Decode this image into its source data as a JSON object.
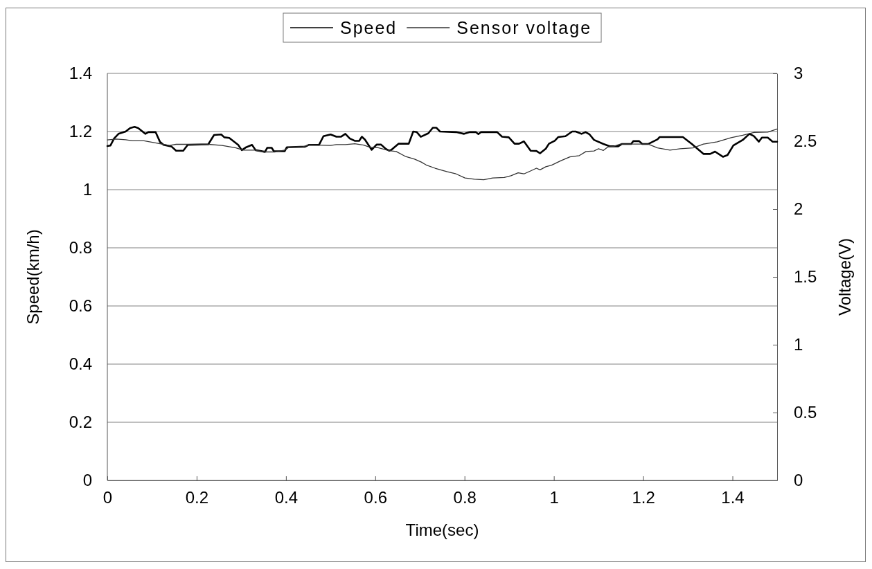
{
  "chart_data": {
    "type": "line",
    "xlabel": "Time(sec)",
    "ylabel": "Speed(km/h)",
    "y2label": "Voltage(V)",
    "xlim": [
      0,
      1.5
    ],
    "xticks": [
      0,
      0.2,
      0.4,
      0.6,
      0.8,
      1,
      1.2,
      1.4
    ],
    "ylim": [
      0,
      1.4
    ],
    "yticks": [
      0,
      0.2,
      0.4,
      0.6,
      0.8,
      1,
      1.2,
      1.4
    ],
    "y2lim": [
      0,
      3
    ],
    "y2ticks": [
      0,
      0.5,
      1,
      1.5,
      2,
      2.5,
      3
    ],
    "grid": "y",
    "legend": "top",
    "series": [
      {
        "name": "Speed",
        "color": "#000000",
        "x": [
          0,
          0.007,
          0.015,
          0.025,
          0.041,
          0.051,
          0.061,
          0.069,
          0.085,
          0.092,
          0.108,
          0.118,
          0.126,
          0.144,
          0.154,
          0.17,
          0.18,
          0.226,
          0.239,
          0.255,
          0.262,
          0.273,
          0.293,
          0.301,
          0.311,
          0.324,
          0.332,
          0.353,
          0.358,
          0.368,
          0.373,
          0.397,
          0.402,
          0.443,
          0.451,
          0.474,
          0.484,
          0.5,
          0.513,
          0.523,
          0.533,
          0.543,
          0.554,
          0.564,
          0.57,
          0.577,
          0.592,
          0.603,
          0.613,
          0.623,
          0.631,
          0.636,
          0.652,
          0.675,
          0.685,
          0.693,
          0.702,
          0.719,
          0.729,
          0.737,
          0.745,
          0.781,
          0.799,
          0.812,
          0.825,
          0.831,
          0.837,
          0.873,
          0.884,
          0.899,
          0.912,
          0.922,
          0.933,
          0.948,
          0.961,
          0.969,
          0.982,
          0.989,
          1.002,
          1.01,
          1.026,
          1.041,
          1.049,
          1.062,
          1.071,
          1.08,
          1.09,
          1.111,
          1.126,
          1.144,
          1.152,
          1.173,
          1.178,
          1.191,
          1.198,
          1.211,
          1.232,
          1.237,
          1.289,
          1.309,
          1.335,
          1.35,
          1.361,
          1.379,
          1.389,
          1.402,
          1.423,
          1.438,
          1.448,
          1.459,
          1.466,
          1.479,
          1.49,
          1.5
        ],
        "values": [
          1.15,
          1.152,
          1.176,
          1.192,
          1.2,
          1.212,
          1.216,
          1.212,
          1.192,
          1.198,
          1.198,
          1.164,
          1.154,
          1.148,
          1.134,
          1.134,
          1.154,
          1.156,
          1.188,
          1.19,
          1.18,
          1.178,
          1.154,
          1.136,
          1.146,
          1.154,
          1.136,
          1.13,
          1.144,
          1.144,
          1.132,
          1.132,
          1.146,
          1.148,
          1.154,
          1.154,
          1.184,
          1.19,
          1.182,
          1.182,
          1.192,
          1.176,
          1.168,
          1.168,
          1.182,
          1.172,
          1.137,
          1.155,
          1.155,
          1.141,
          1.134,
          1.137,
          1.158,
          1.158,
          1.2,
          1.198,
          1.182,
          1.194,
          1.213,
          1.213,
          1.2,
          1.198,
          1.192,
          1.198,
          1.198,
          1.191,
          1.198,
          1.198,
          1.182,
          1.18,
          1.158,
          1.158,
          1.166,
          1.134,
          1.133,
          1.125,
          1.141,
          1.158,
          1.168,
          1.181,
          1.184,
          1.2,
          1.2,
          1.192,
          1.198,
          1.19,
          1.171,
          1.157,
          1.149,
          1.149,
          1.157,
          1.157,
          1.167,
          1.167,
          1.157,
          1.157,
          1.173,
          1.181,
          1.181,
          1.157,
          1.123,
          1.123,
          1.131,
          1.113,
          1.119,
          1.152,
          1.171,
          1.192,
          1.184,
          1.165,
          1.179,
          1.179,
          1.165,
          1.165
        ]
      },
      {
        "name": "Sensor voltage",
        "color": "#333333",
        "axis": "y2",
        "x": [
          0,
          0.02,
          0.041,
          0.056,
          0.082,
          0.118,
          0.139,
          0.154,
          0.226,
          0.257,
          0.288,
          0.304,
          0.33,
          0.35,
          0.376,
          0.397,
          0.407,
          0.438,
          0.453,
          0.5,
          0.513,
          0.533,
          0.554,
          0.574,
          0.59,
          0.605,
          0.631,
          0.647,
          0.667,
          0.688,
          0.703,
          0.714,
          0.734,
          0.76,
          0.781,
          0.801,
          0.822,
          0.843,
          0.863,
          0.889,
          0.904,
          0.92,
          0.933,
          0.946,
          0.961,
          0.969,
          0.982,
          0.995,
          1.015,
          1.036,
          1.057,
          1.072,
          1.09,
          1.1,
          1.111,
          1.121,
          1.134,
          1.149,
          1.211,
          1.232,
          1.26,
          1.283,
          1.312,
          1.335,
          1.366,
          1.397,
          1.423,
          1.448,
          1.479,
          1.5
        ],
        "values": [
          2.51,
          2.516,
          2.511,
          2.503,
          2.503,
          2.481,
          2.469,
          2.477,
          2.477,
          2.469,
          2.451,
          2.434,
          2.434,
          2.421,
          2.421,
          2.434,
          2.456,
          2.46,
          2.473,
          2.469,
          2.475,
          2.475,
          2.481,
          2.471,
          2.454,
          2.454,
          2.43,
          2.424,
          2.389,
          2.368,
          2.346,
          2.325,
          2.301,
          2.276,
          2.259,
          2.229,
          2.22,
          2.216,
          2.229,
          2.233,
          2.246,
          2.267,
          2.259,
          2.278,
          2.301,
          2.289,
          2.312,
          2.323,
          2.355,
          2.385,
          2.394,
          2.424,
          2.428,
          2.445,
          2.432,
          2.458,
          2.462,
          2.479,
          2.479,
          2.451,
          2.434,
          2.445,
          2.451,
          2.479,
          2.496,
          2.526,
          2.544,
          2.565,
          2.567,
          2.59
        ]
      }
    ]
  }
}
